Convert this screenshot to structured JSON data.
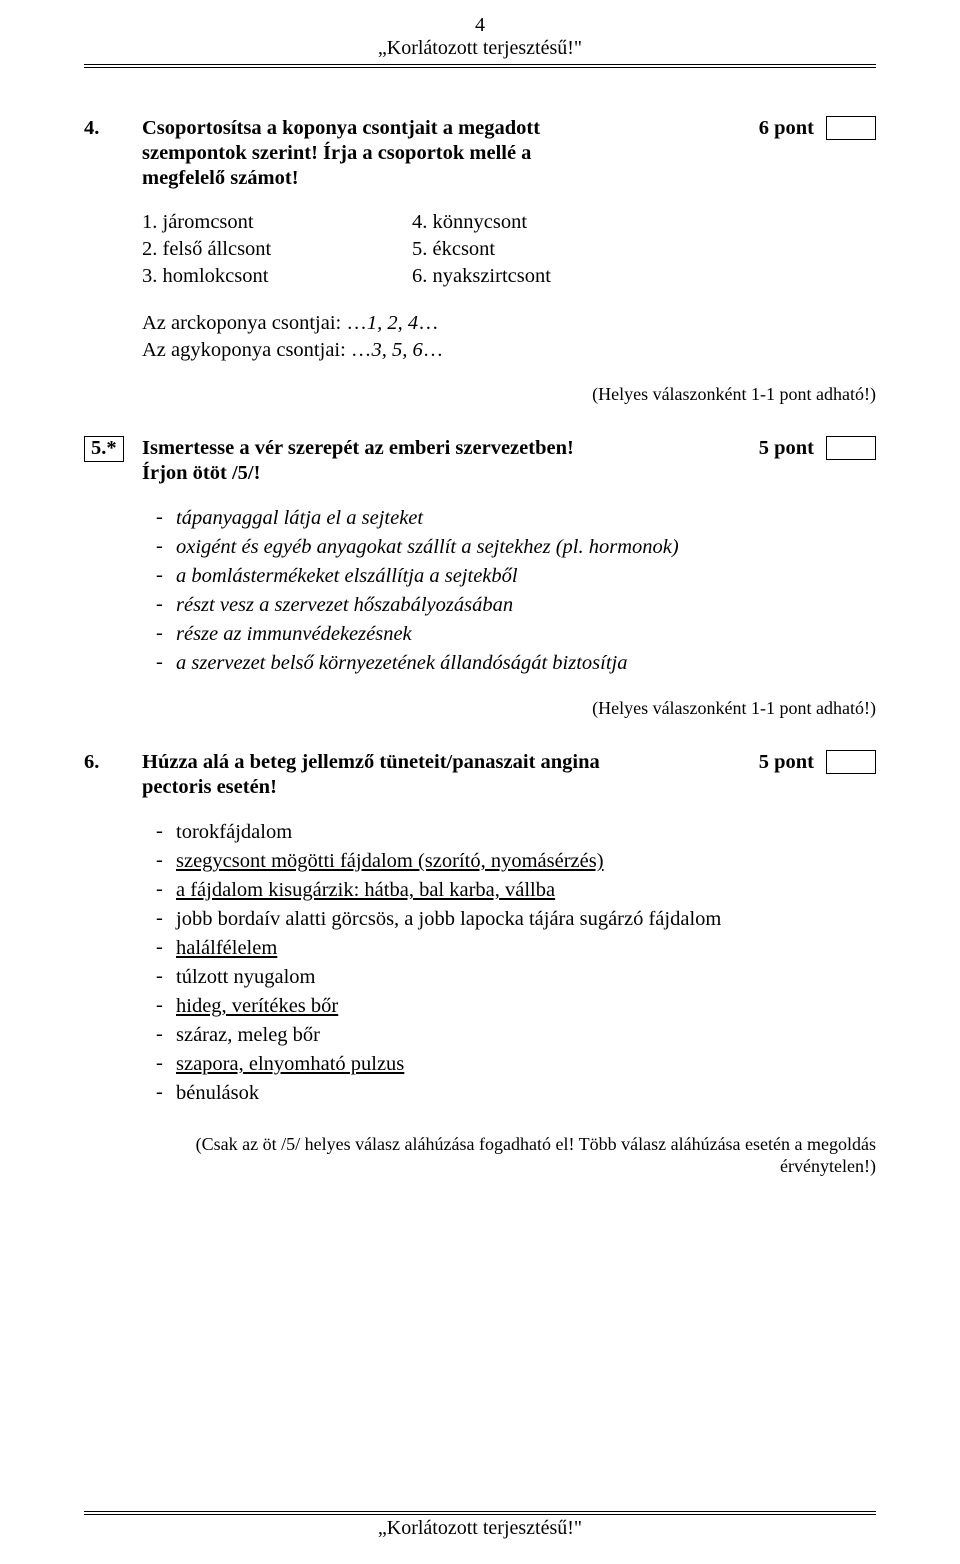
{
  "header": {
    "page_number": "4",
    "restriction": "„Korlátozott terjesztésű!\""
  },
  "footer": {
    "restriction": "„Korlátozott terjesztésű!\""
  },
  "q4": {
    "number": "4.",
    "title_l1": "Csoportosítsa a koponya csontjait a megadott",
    "title_l2": "szempontok szerint! Írja a csoportok mellé a",
    "title_l3": "megfelelő számot!",
    "points": "6 pont",
    "left_items": [
      "1. járomcsont",
      "2. felső állcsont",
      "3. homlokcsont"
    ],
    "right_items": [
      "4. könnycsont",
      "5. ékcsont",
      "6. nyakszirtcsont"
    ],
    "answer1_label": "Az arckoponya csontjai: …",
    "answer1_val": "1, 2, 4",
    "answer1_tail": "…",
    "answer2_label": "Az agykoponya csontjai: …",
    "answer2_val": "3, 5, 6",
    "answer2_tail": "…",
    "note": "(Helyes válaszonként 1-1 pont adható!)"
  },
  "q5": {
    "number": "5.*",
    "title_l1": "Ismertesse a vér szerepét az emberi szervezetben!",
    "title_l2": "Írjon ötöt /5/!",
    "points": "5 pont",
    "items": [
      "tápanyaggal látja el a sejteket",
      "oxigént és egyéb anyagokat szállít a sejtekhez (pl. hormonok)",
      "a bomlástermékeket elszállítja a sejtekből",
      "részt vesz a szervezet hőszabályozásában",
      "része az immunvédekezésnek",
      "a szervezet belső környezetének állandóságát biztosítja"
    ],
    "note": "(Helyes válaszonként 1-1 pont adható!)"
  },
  "q6": {
    "number": "6.",
    "title_l1": "Húzza alá a beteg jellemző tüneteit/panaszait angina",
    "title_l2": "pectoris esetén!",
    "points": "5 pont",
    "items": [
      {
        "text": "torokfájdalom",
        "u": false
      },
      {
        "text": "szegycsont mögötti fájdalom (szorító, nyomásérzés)",
        "u": true
      },
      {
        "text": "a fájdalom kisugárzik: hátba, bal karba, vállba",
        "u": true
      },
      {
        "text": "jobb bordaív alatti görcsös, a jobb lapocka tájára sugárzó fájdalom",
        "u": false
      },
      {
        "text": "halálfélelem",
        "u": true
      },
      {
        "text": "túlzott nyugalom",
        "u": false
      },
      {
        "text": "hideg, verítékes bőr",
        "u": true
      },
      {
        "text": "száraz, meleg bőr",
        "u": false
      },
      {
        "text": "szapora, elnyomható pulzus",
        "u": true
      },
      {
        "text": "bénulások",
        "u": false
      }
    ],
    "note_l1": "(Csak az öt /5/ helyes válasz aláhúzása fogadható el! Több válasz aláhúzása esetén a megoldás",
    "note_l2": "érvénytelen!)"
  }
}
